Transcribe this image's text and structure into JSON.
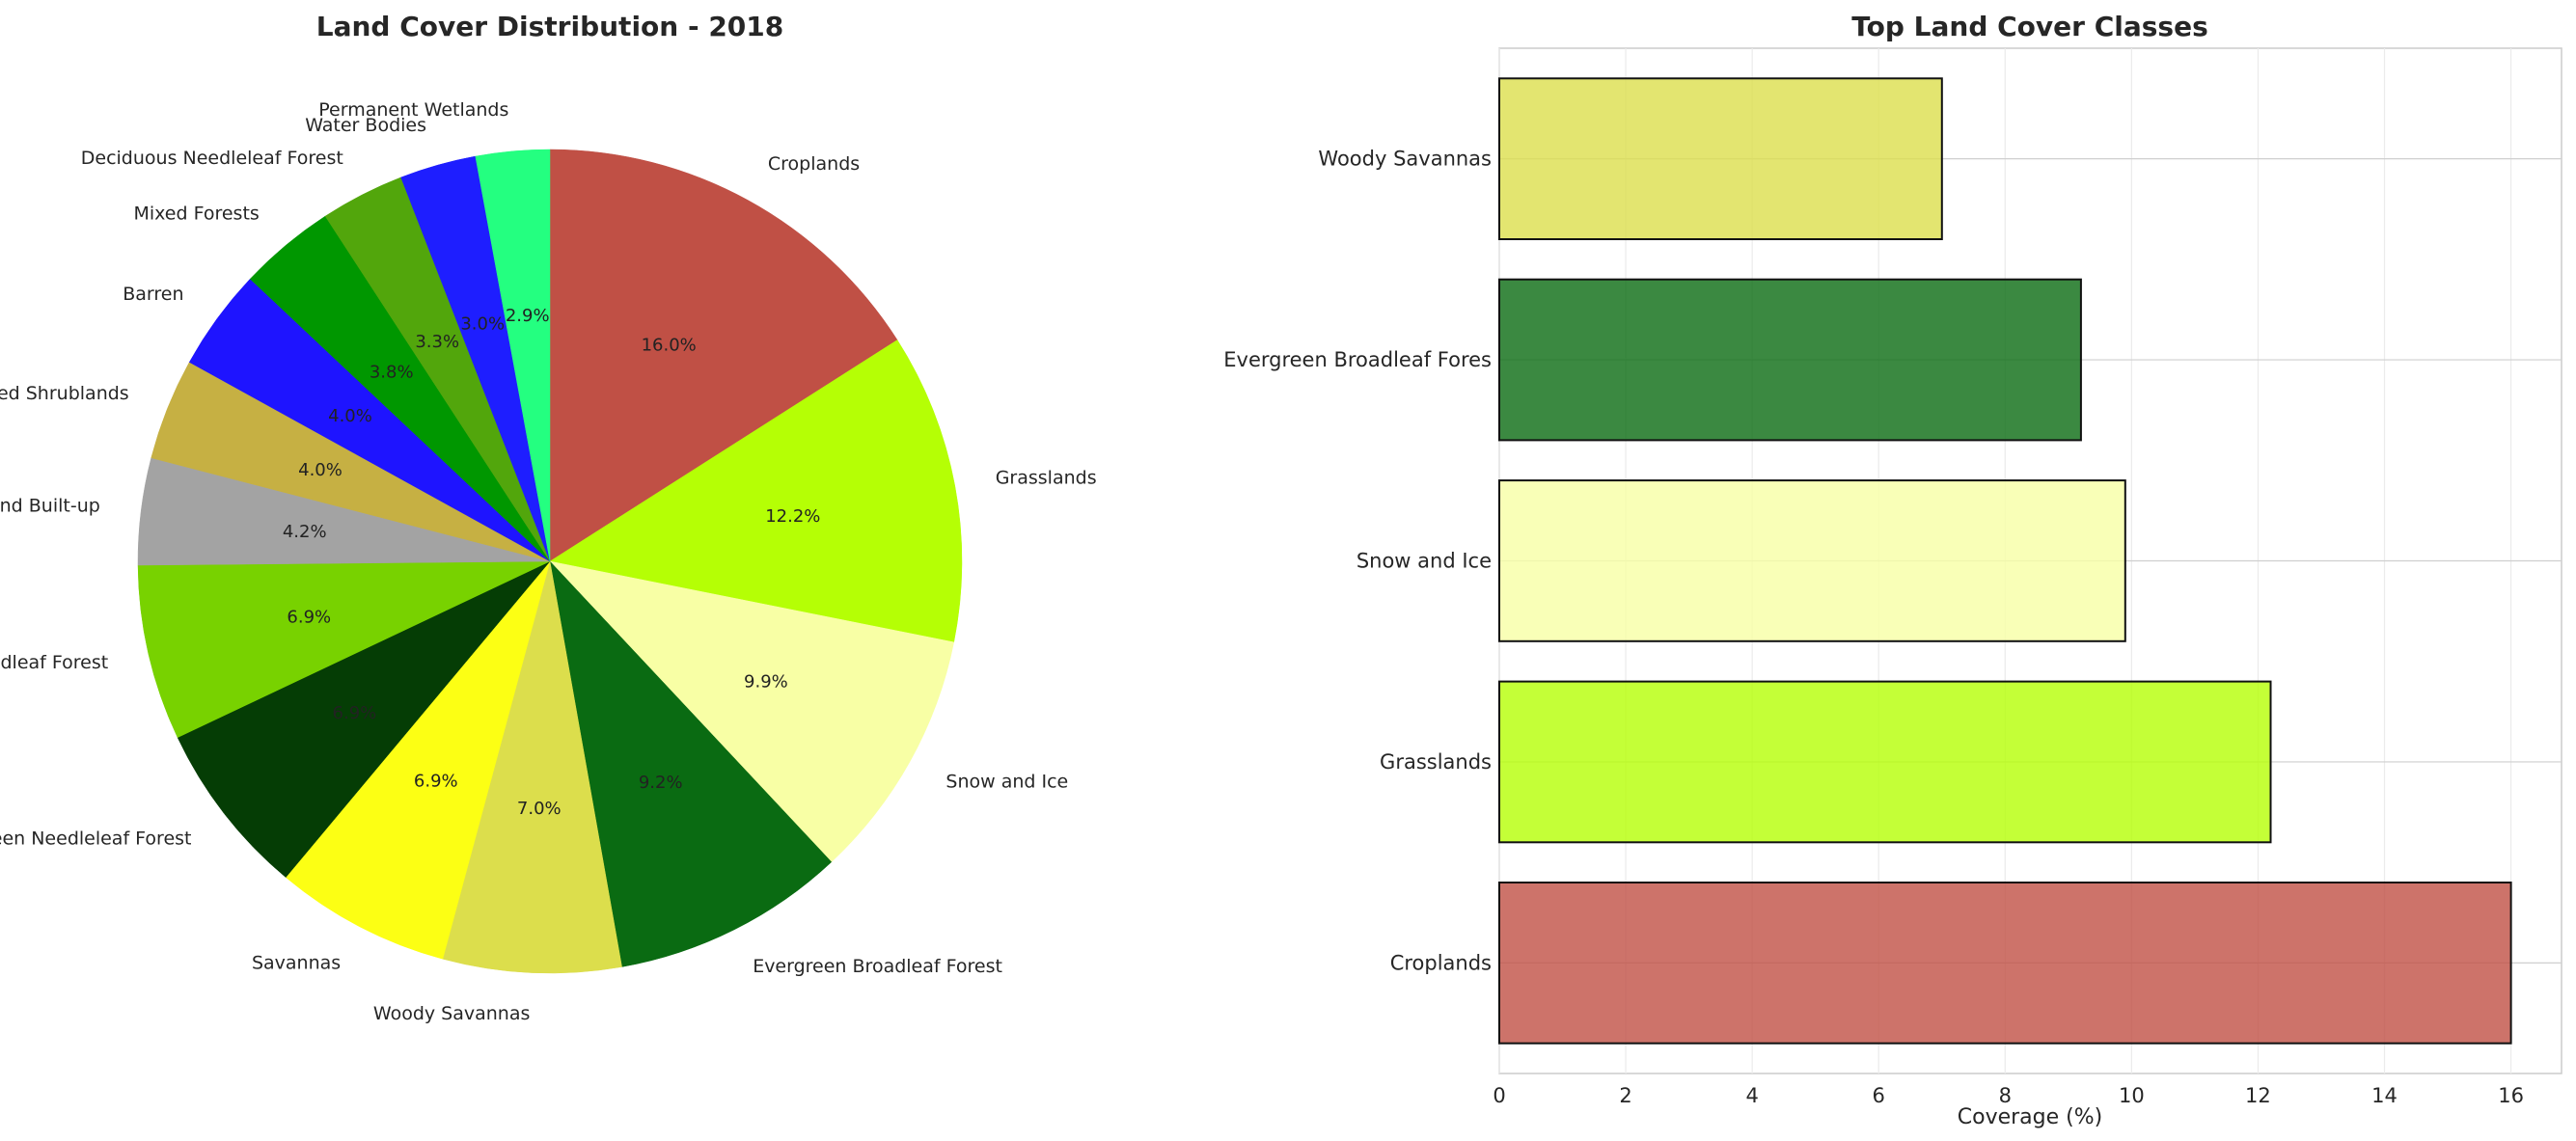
{
  "chart_data": [
    {
      "type": "pie",
      "title": "Land Cover Distribution - 2018",
      "slices": [
        {
          "label": "Croplands",
          "value": 16.0,
          "pct_label": "16.0%",
          "color": "#c05045"
        },
        {
          "label": "Grasslands",
          "value": 12.2,
          "pct_label": "12.2%",
          "color": "#b5ff05"
        },
        {
          "label": "Snow and Ice",
          "value": 9.9,
          "pct_label": "9.9%",
          "color": "#f8ffa5"
        },
        {
          "label": "Evergreen Broadleaf Forest",
          "value": 9.2,
          "pct_label": "9.2%",
          "color": "#0a6b12"
        },
        {
          "label": "Woody Savannas",
          "value": 7.0,
          "pct_label": "7.0%",
          "color": "#dcde4c"
        },
        {
          "label": "Savannas",
          "value": 6.9,
          "pct_label": "6.9%",
          "color": "#fcff14"
        },
        {
          "label": "Evergreen Needleleaf Forest",
          "value": 6.9,
          "pct_label": "6.9%",
          "color": "#053d05"
        },
        {
          "label": "Deciduous Broadleaf Forest",
          "value": 6.9,
          "pct_label": "6.9%",
          "color": "#78d200"
        },
        {
          "label": "Urban and Built-up",
          "value": 4.2,
          "pct_label": "4.2%",
          "color": "#a3a3a3"
        },
        {
          "label": "Closed Shrublands",
          "value": 4.0,
          "pct_label": "4.0%",
          "color": "#c6b043"
        },
        {
          "label": "Barren",
          "value": 4.0,
          "pct_label": "4.0%",
          "color": "#1e14ff"
        },
        {
          "label": "Mixed Forests",
          "value": 3.8,
          "pct_label": "3.8%",
          "color": "#009700"
        },
        {
          "label": "Deciduous Needleleaf Forest",
          "value": 3.3,
          "pct_label": "3.3%",
          "color": "#52a60c"
        },
        {
          "label": "Water Bodies",
          "value": 3.0,
          "pct_label": "3.0%",
          "color": "#1e1eff"
        },
        {
          "label": "Permanent Wetlands",
          "value": 2.9,
          "pct_label": "2.9%",
          "color": "#24ff80"
        }
      ],
      "start_angle": 90,
      "direction": "clockwise"
    },
    {
      "type": "bar",
      "orientation": "horizontal",
      "title": "Top Land Cover Classes",
      "xlabel": "Coverage (%)",
      "ylabel": "",
      "categories": [
        "Croplands",
        "Grasslands",
        "Snow and Ice",
        "Evergreen Broadleaf Fores",
        "Woody Savannas"
      ],
      "values": [
        16.0,
        12.2,
        9.9,
        9.2,
        7.0
      ],
      "colors": [
        "#c05045",
        "#b5ff05",
        "#f8ffa5",
        "#0a6b12",
        "#dcde4c"
      ],
      "xlim": [
        0,
        16.8
      ],
      "xticks": [
        0,
        2,
        4,
        6,
        8,
        10,
        12,
        14,
        16
      ],
      "grid": true
    }
  ]
}
